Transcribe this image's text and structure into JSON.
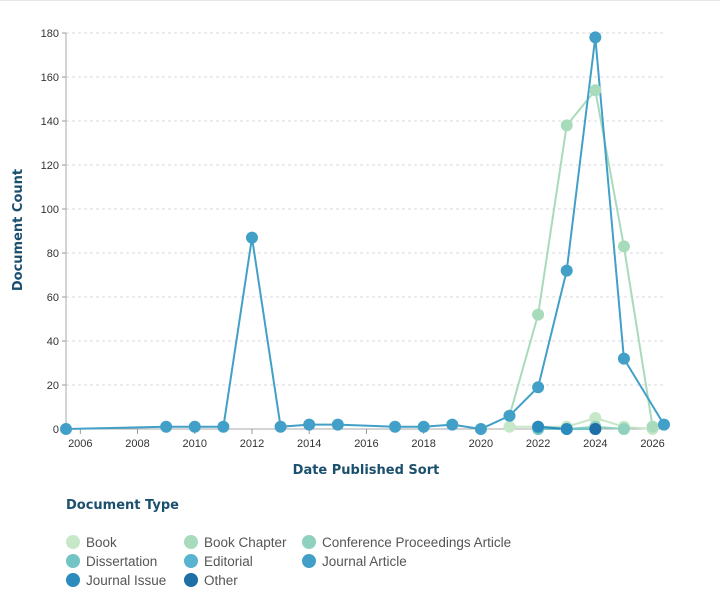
{
  "chart_data": {
    "type": "line",
    "xlabel": "Date Published Sort",
    "ylabel": "Document Count",
    "xlim": [
      2005.5,
      2026.4
    ],
    "ylim": [
      0,
      180
    ],
    "x_ticks": [
      2006,
      2008,
      2010,
      2012,
      2014,
      2016,
      2018,
      2020,
      2022,
      2024,
      2026
    ],
    "y_ticks": [
      0,
      20,
      40,
      60,
      80,
      100,
      120,
      140,
      160,
      180
    ],
    "grid": true,
    "legend_title": "Document Type",
    "legend_position": "bottom",
    "series": [
      {
        "name": "Book",
        "color": "#c6e8c8",
        "x": [
          2021,
          2022,
          2023,
          2024,
          2025,
          2026
        ],
        "y": [
          1,
          1,
          1,
          5,
          1,
          0
        ]
      },
      {
        "name": "Book Chapter",
        "color": "#a8dbbc",
        "x": [
          2021,
          2022,
          2023,
          2024,
          2025,
          2026
        ],
        "y": [
          6,
          52,
          138,
          154,
          83,
          1
        ]
      },
      {
        "name": "Conference Proceedings Article",
        "color": "#8fd1bf",
        "x": [
          2022,
          2023,
          2024,
          2025
        ],
        "y": [
          1,
          0,
          1,
          0
        ]
      },
      {
        "name": "Dissertation",
        "color": "#72c5c4",
        "x": [
          2022,
          2024
        ],
        "y": [
          0,
          0
        ]
      },
      {
        "name": "Editorial",
        "color": "#5bb4cf",
        "x": [
          2024
        ],
        "y": [
          0
        ]
      },
      {
        "name": "Journal Article",
        "color": "#42a0c8",
        "x": [
          2005.5,
          2009,
          2010,
          2011,
          2012,
          2013,
          2014,
          2015,
          2017,
          2018,
          2019,
          2020,
          2021,
          2022,
          2023,
          2024,
          2025,
          2026.4
        ],
        "y": [
          0,
          1,
          1,
          1,
          87,
          1,
          2,
          2,
          1,
          1,
          2,
          0,
          6,
          19,
          72,
          178,
          32,
          2
        ]
      },
      {
        "name": "Journal Issue",
        "color": "#2b8bbd",
        "x": [
          2022,
          2023
        ],
        "y": [
          1,
          0
        ]
      },
      {
        "name": "Other",
        "color": "#1d6fa6",
        "x": [
          2024
        ],
        "y": [
          0
        ]
      }
    ]
  }
}
